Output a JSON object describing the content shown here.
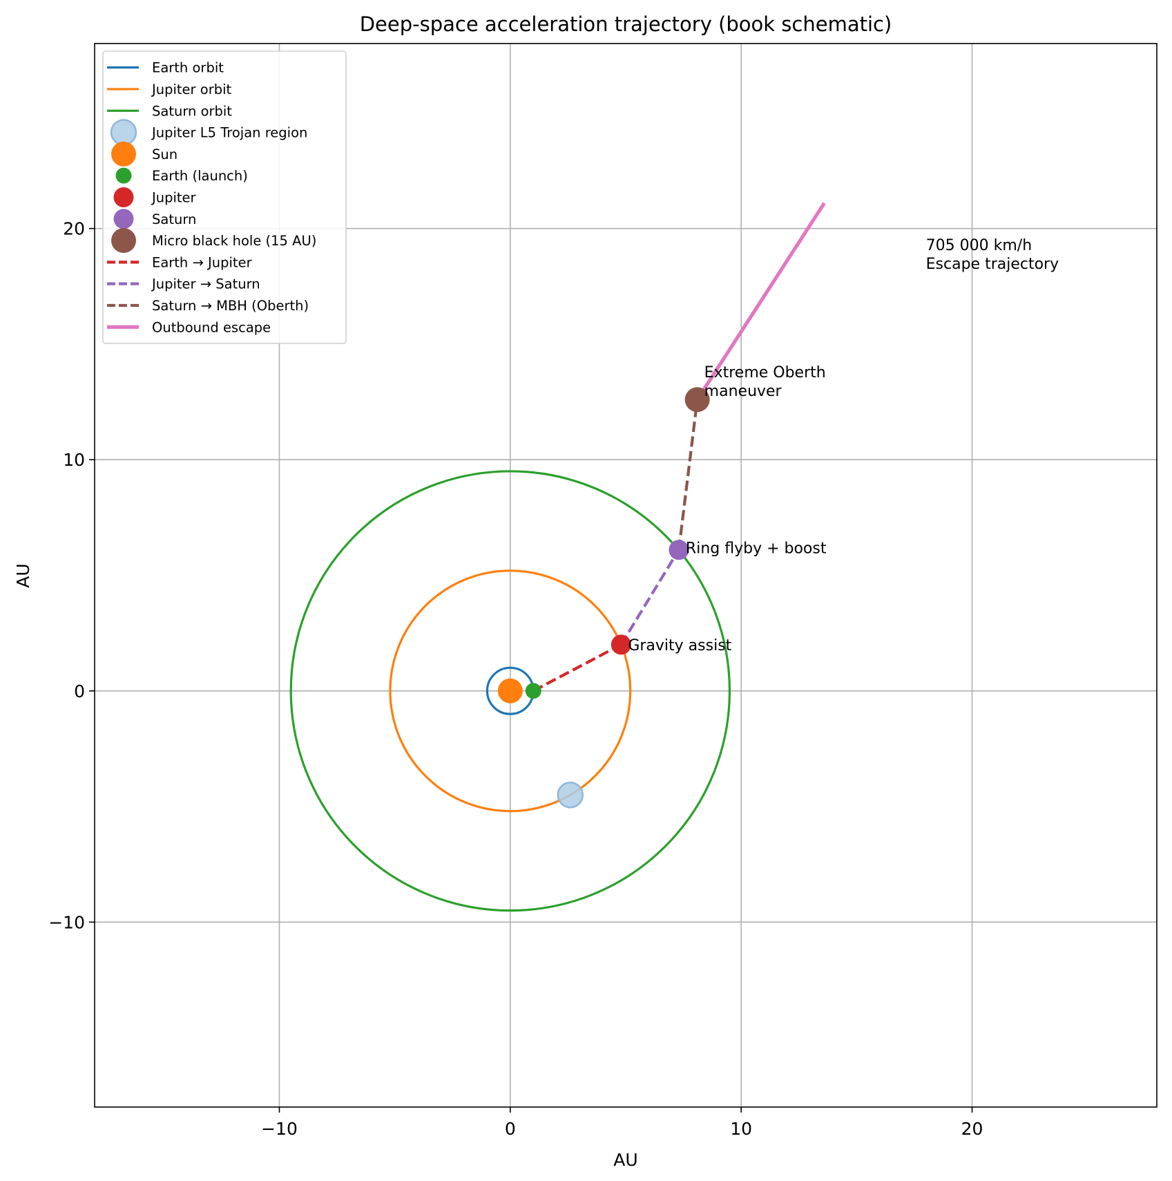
{
  "chart_data": {
    "type": "line",
    "title": "Deep-space acceleration trajectory (book schematic)",
    "xlabel": "AU",
    "ylabel": "AU",
    "xlim": [
      -18,
      28
    ],
    "ylim": [
      -18,
      28
    ],
    "grid": true,
    "legend_position": "top-left",
    "xticks": [
      {
        "value": -10,
        "label": "−10"
      },
      {
        "value": 0,
        "label": "0"
      },
      {
        "value": 10,
        "label": "10"
      },
      {
        "value": 20,
        "label": "20"
      }
    ],
    "yticks": [
      {
        "value": -10,
        "label": "−10"
      },
      {
        "value": 0,
        "label": "0"
      },
      {
        "value": 10,
        "label": "10"
      },
      {
        "value": 20,
        "label": "20"
      }
    ],
    "orbits": [
      {
        "name": "Earth orbit",
        "radius": 1.0,
        "color": "#1f77b4"
      },
      {
        "name": "Jupiter orbit",
        "radius": 5.2,
        "color": "#ff7f0e"
      },
      {
        "name": "Saturn orbit",
        "radius": 9.5,
        "color": "#2ca02c"
      }
    ],
    "bodies": [
      {
        "name": "Jupiter L5 Trojan region",
        "x": 2.6,
        "y": -4.5,
        "color": "#aecde6",
        "edge": "#8fb6d9",
        "size": "large",
        "alpha": true
      },
      {
        "name": "Sun",
        "x": 0,
        "y": 0,
        "color": "#ff7f0e",
        "size": "large"
      },
      {
        "name": "Earth (launch)",
        "x": 1.0,
        "y": 0,
        "color": "#2ca02c",
        "size": "small"
      },
      {
        "name": "Jupiter",
        "x": 4.8,
        "y": 2.0,
        "color": "#d62728",
        "size": "medium"
      },
      {
        "name": "Saturn",
        "x": 7.3,
        "y": 6.1,
        "color": "#9467bd",
        "size": "medium"
      },
      {
        "name": "Micro black hole (15 AU)",
        "x": 8.1,
        "y": 12.6,
        "color": "#8c564b",
        "size": "large"
      }
    ],
    "paths": [
      {
        "name": "Earth → Jupiter",
        "from": [
          1.0,
          0
        ],
        "to": [
          4.8,
          2.0
        ],
        "color": "#d62728",
        "dashed": true
      },
      {
        "name": "Jupiter → Saturn",
        "from": [
          4.8,
          2.0
        ],
        "to": [
          7.3,
          6.1
        ],
        "color": "#9467bd",
        "dashed": true
      },
      {
        "name": "Saturn → MBH (Oberth)",
        "from": [
          7.3,
          6.1
        ],
        "to": [
          8.1,
          12.6
        ],
        "color": "#8c564b",
        "dashed": true
      },
      {
        "name": "Outbound escape",
        "from": [
          8.1,
          12.6
        ],
        "to": [
          13.6,
          21.1
        ],
        "color": "#e377c2",
        "dashed": false
      }
    ],
    "annotations": [
      {
        "text": "Gravity assist",
        "x": 5.1,
        "y": 2.0
      },
      {
        "text": "Ring flyby + boost",
        "x": 7.6,
        "y": 6.2
      },
      {
        "text": "Extreme Oberth\nmaneuver",
        "x": 8.4,
        "y": 13.0
      },
      {
        "text": "705 000 km/h\nEscape trajectory",
        "x": 18.0,
        "y": 18.5
      }
    ]
  }
}
